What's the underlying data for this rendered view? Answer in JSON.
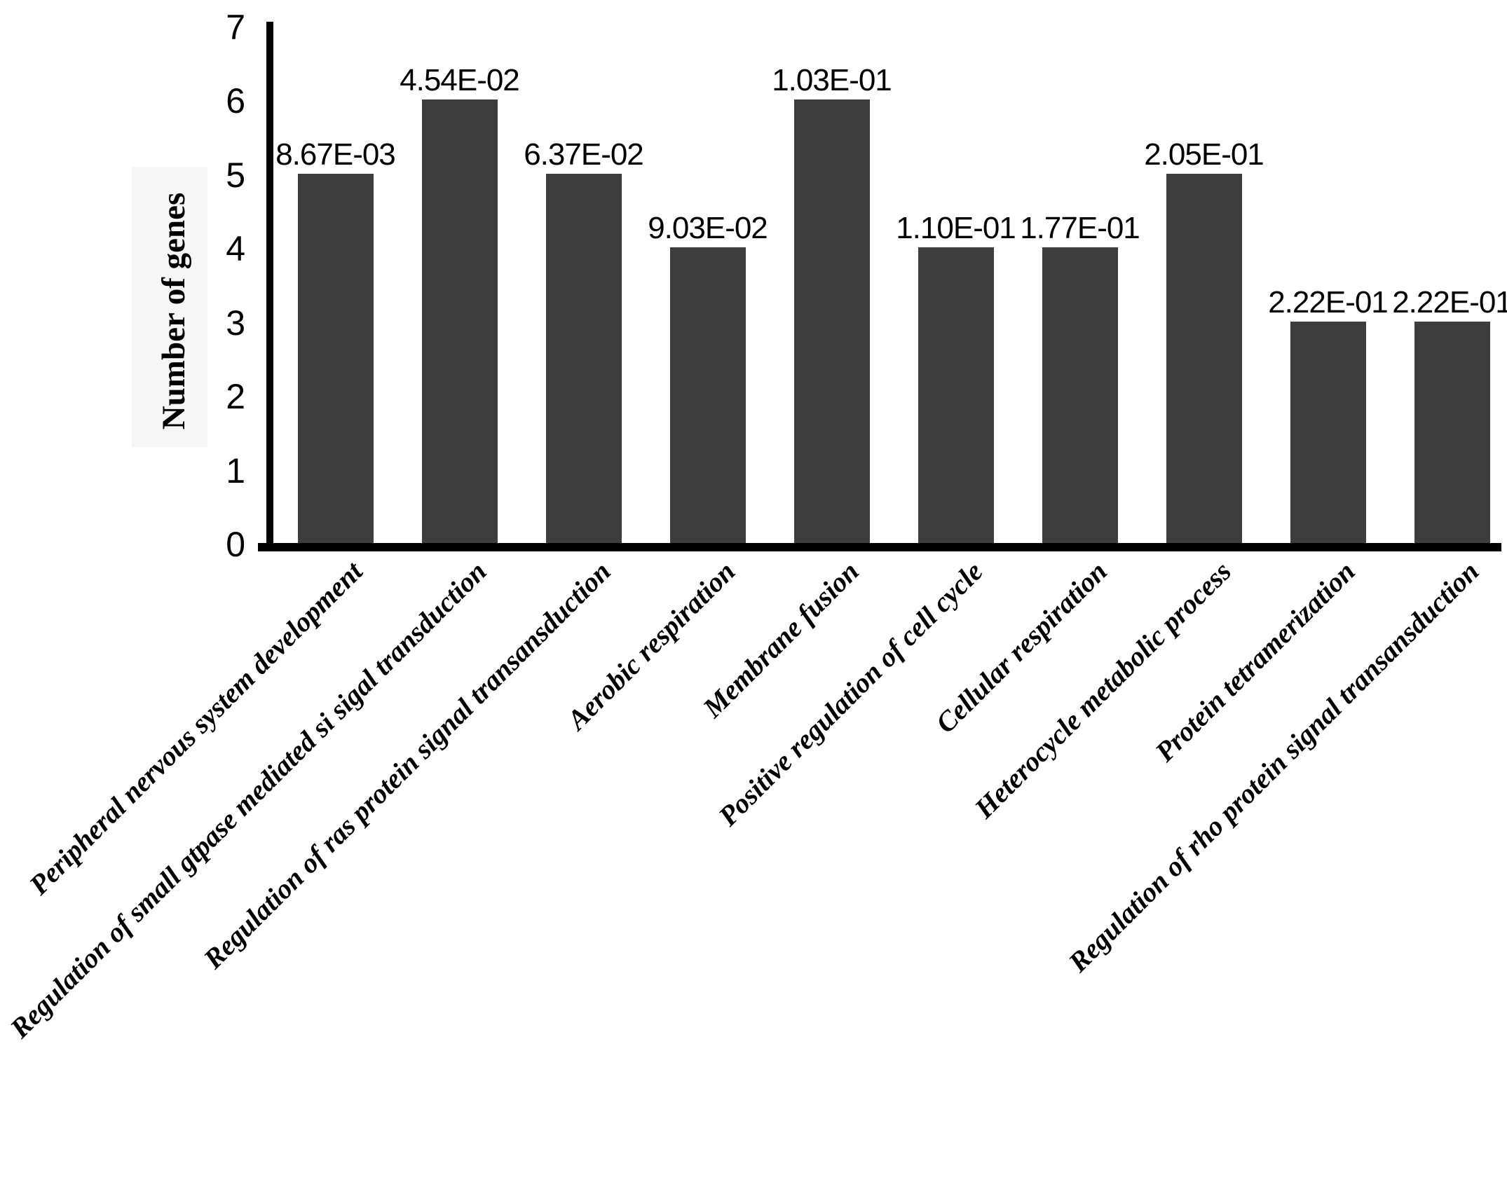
{
  "figure": {
    "background_color": "#ffffff",
    "bar_color": "#3d3d3d",
    "axis_color": "#000000",
    "text_color": "#000000"
  },
  "chart_data": {
    "type": "bar",
    "title": "",
    "xlabel": "",
    "ylabel": "Number of genes",
    "ylim": [
      0,
      7
    ],
    "yticks": [
      0,
      1,
      2,
      3,
      4,
      5,
      6,
      7
    ],
    "grid": false,
    "legend": null,
    "categories": [
      "Peripheral nervous system development",
      "Regulation of small gtpase mediated si sigal transduction",
      "Regulation of ras protein signal transansduction",
      "Aerobic respiration",
      "Membrane fusion",
      "Positive regulation of cell cycle",
      "Cellular respiration",
      "Heterocycle metabolic process",
      "Protein tetramerization",
      "Regulation of rho protein signal transansduction"
    ],
    "values": [
      5,
      6,
      5,
      4,
      6,
      4,
      4,
      5,
      3,
      3
    ],
    "bar_labels": [
      "8.67E-03",
      "4.54E-02",
      "6.37E-02",
      "9.03E-02",
      "1.03E-01",
      "1.10E-01",
      "1.77E-01",
      "2.05E-01",
      "2.22E-01",
      "2.22E-01"
    ]
  }
}
